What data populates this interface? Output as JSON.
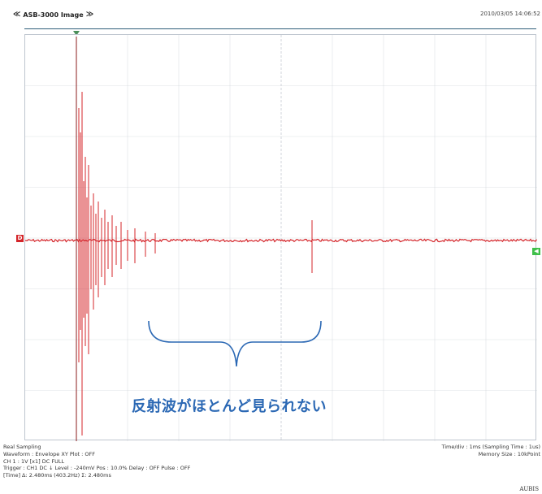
{
  "header": {
    "left_chevron": "≪",
    "title": "ASB-3000 Image",
    "right_chevron": "≫",
    "datetime": "2010/03/05 14:06:52"
  },
  "markers": {
    "ch1": "D",
    "ref": "◀"
  },
  "annotation": "反射波がほとんど見られない",
  "colors": {
    "waveform": "#d4252a",
    "grid": "#c8cdd3",
    "bracket": "#2b68b4"
  },
  "info": {
    "sampling": "Real Sampling",
    "waveform_line": "Waveform : Envelope        XY Plot : OFF",
    "ch_line": "CH 1 : 1V [x1]  DC  FULL",
    "trigger_line": "Trigger : CH1  DC  ↓   Level : -240mV   Pos : 10.0%   Delay : OFF   Pulse : OFF",
    "time_line": "[Time]  Δ: 2.480ms (403.2Hz)  Σ: 2.480ms"
  },
  "info_right": {
    "timediv": "Time/div : 1ms (Sampling Time : 1us)",
    "memory": "Memory Size : 10kPoint"
  },
  "brand": "AUBIS"
}
